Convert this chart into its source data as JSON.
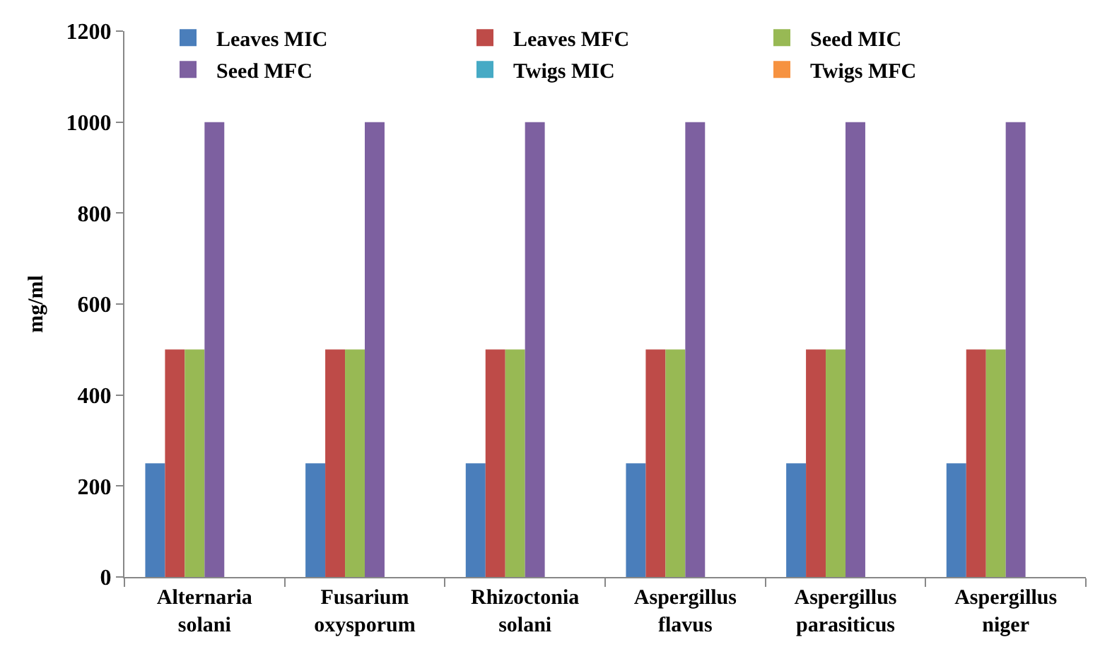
{
  "chart_data": {
    "type": "bar",
    "ylabel": "mg/ml",
    "categories": [
      "Alternaria solani",
      "Fusarium oxysporum",
      "Rhizoctonia solani",
      "Aspergillus flavus",
      "Aspergillus parasiticus",
      "Aspergillus niger"
    ],
    "series": [
      {
        "name": "Leaves MIC",
        "color": "#4a7ebb",
        "values": [
          250,
          250,
          250,
          250,
          250,
          250
        ]
      },
      {
        "name": "Leaves MFC",
        "color": "#be4b48",
        "values": [
          500,
          500,
          500,
          500,
          500,
          500
        ]
      },
      {
        "name": "Seed MIC",
        "color": "#98b954",
        "values": [
          500,
          500,
          500,
          500,
          500,
          500
        ]
      },
      {
        "name": "Seed MFC",
        "color": "#7d60a0",
        "values": [
          1000,
          1000,
          1000,
          1000,
          1000,
          1000
        ]
      },
      {
        "name": "Twigs MIC",
        "color": "#46aac5",
        "values": [
          null,
          null,
          null,
          null,
          null,
          null
        ]
      },
      {
        "name": "Twigs MFC",
        "color": "#f69240",
        "values": [
          null,
          null,
          null,
          null,
          null,
          null
        ]
      }
    ],
    "ylim": [
      0,
      1200
    ],
    "yticks": [
      0,
      200,
      400,
      600,
      800,
      1000,
      1200
    ],
    "grid": false,
    "legend": "top"
  }
}
